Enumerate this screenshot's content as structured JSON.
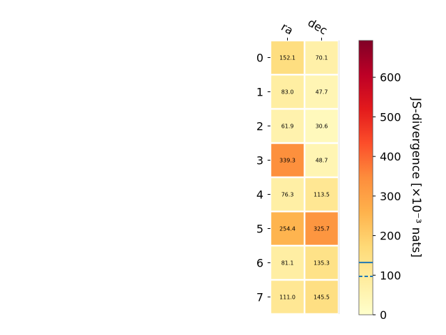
{
  "chart_data": {
    "type": "heatmap",
    "columns": [
      "ra",
      "dec"
    ],
    "rows": [
      "0",
      "1",
      "2",
      "3",
      "4",
      "5",
      "6",
      "7"
    ],
    "values": [
      [
        152.1,
        70.1
      ],
      [
        83.0,
        47.7
      ],
      [
        61.9,
        30.6
      ],
      [
        339.3,
        48.7
      ],
      [
        76.3,
        113.5
      ],
      [
        254.4,
        325.7
      ],
      [
        81.1,
        135.3
      ],
      [
        111.0,
        145.5
      ]
    ],
    "value_labels": [
      [
        "152.1",
        "70.1"
      ],
      [
        "83.0",
        "47.7"
      ],
      [
        "61.9",
        "30.6"
      ],
      [
        "339.3",
        "48.7"
      ],
      [
        "76.3",
        "113.5"
      ],
      [
        "254.4",
        "325.7"
      ],
      [
        "81.1",
        "135.3"
      ],
      [
        "111.0",
        "145.5"
      ]
    ],
    "colormap": "YlOrRd",
    "colorbar": {
      "label": "JS-divergence [×10⁻³ nats]",
      "range": [
        0,
        693
      ],
      "ticks": [
        0,
        100,
        200,
        300,
        400,
        500,
        600
      ],
      "tick_labels": [
        "0",
        "100",
        "200",
        "300",
        "400",
        "500",
        "600"
      ],
      "markers": [
        {
          "value": 132,
          "style": "solid",
          "color": "#1f77b4"
        },
        {
          "value": 97,
          "style": "dashed",
          "color": "#1f77b4"
        }
      ]
    }
  }
}
